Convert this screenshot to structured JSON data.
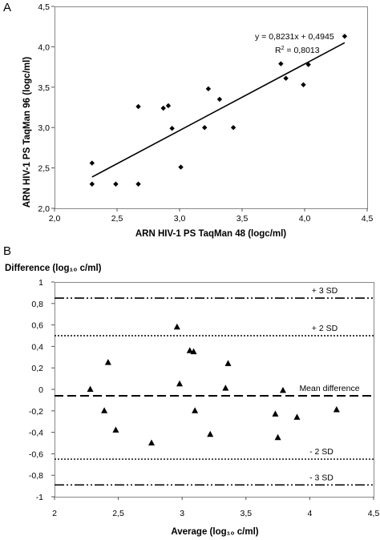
{
  "chart_data": [
    {
      "panel": "A",
      "type": "scatter",
      "xlabel": "ARN HIV-1 PS TaqMan 48 (logc/ml)",
      "ylabel": "ARN HIV-1 PS TaqMan 96 (logc/ml)",
      "xlim": [
        2.0,
        4.5
      ],
      "ylim": [
        2.0,
        4.5
      ],
      "xticks": [
        "2,0",
        "2,5",
        "3,0",
        "3,5",
        "4,0",
        "4,5"
      ],
      "yticks": [
        "2,0",
        "2,5",
        "3,0",
        "3,5",
        "4,0",
        "4,5"
      ],
      "grid": false,
      "marker": "diamond",
      "points": [
        {
          "x": 2.3,
          "y": 2.56
        },
        {
          "x": 2.3,
          "y": 2.3
        },
        {
          "x": 2.49,
          "y": 2.3
        },
        {
          "x": 2.67,
          "y": 3.26
        },
        {
          "x": 2.67,
          "y": 2.3
        },
        {
          "x": 2.87,
          "y": 3.24
        },
        {
          "x": 2.91,
          "y": 3.27
        },
        {
          "x": 2.94,
          "y": 2.99
        },
        {
          "x": 3.01,
          "y": 2.51
        },
        {
          "x": 3.2,
          "y": 3.0
        },
        {
          "x": 3.23,
          "y": 3.48
        },
        {
          "x": 3.32,
          "y": 3.35
        },
        {
          "x": 3.43,
          "y": 3.0
        },
        {
          "x": 3.81,
          "y": 3.79
        },
        {
          "x": 3.85,
          "y": 3.61
        },
        {
          "x": 3.99,
          "y": 3.53
        },
        {
          "x": 4.03,
          "y": 3.78
        },
        {
          "x": 4.32,
          "y": 4.13
        }
      ],
      "trendline": {
        "slope": 0.8231,
        "intercept": 0.4945,
        "x_range": [
          2.3,
          4.32
        ]
      },
      "annotations": {
        "equation": "y = 0,8231x + 0,4945",
        "r2_prefix": "R",
        "r2_exp": "2",
        "r2_value": " = 0,8013"
      }
    },
    {
      "panel": "B",
      "type": "scatter",
      "title": "Difference (log₁₀ c/ml)",
      "xlabel": "Average (log₁₀ c/ml)",
      "xlim": [
        2.0,
        4.5
      ],
      "ylim": [
        -1.0,
        1.0
      ],
      "xticks": [
        "2",
        "2,5",
        "3",
        "3,5",
        "4",
        "4,5"
      ],
      "yticks": [
        "1",
        "0,8",
        "0,6",
        "0,4",
        "0,2",
        "0",
        "-0,2",
        "-0,4",
        "-0,6",
        "-0,8",
        "-1"
      ],
      "grid": false,
      "marker": "triangle",
      "points": [
        {
          "x": 2.28,
          "y": 0.0
        },
        {
          "x": 2.39,
          "y": -0.2
        },
        {
          "x": 2.42,
          "y": 0.25
        },
        {
          "x": 2.48,
          "y": -0.38
        },
        {
          "x": 2.76,
          "y": -0.5
        },
        {
          "x": 2.96,
          "y": 0.58
        },
        {
          "x": 2.98,
          "y": 0.05
        },
        {
          "x": 3.06,
          "y": 0.36
        },
        {
          "x": 3.09,
          "y": 0.35
        },
        {
          "x": 3.1,
          "y": -0.2
        },
        {
          "x": 3.22,
          "y": -0.42
        },
        {
          "x": 3.34,
          "y": 0.01
        },
        {
          "x": 3.36,
          "y": 0.24
        },
        {
          "x": 3.73,
          "y": -0.23
        },
        {
          "x": 3.75,
          "y": -0.45
        },
        {
          "x": 3.79,
          "y": -0.01
        },
        {
          "x": 3.9,
          "y": -0.26
        },
        {
          "x": 4.21,
          "y": -0.19
        }
      ],
      "reference_lines": [
        {
          "label": "+ 3 SD",
          "value": 0.85,
          "style": "dash-dot-dot"
        },
        {
          "label": "+ 2 SD",
          "value": 0.5,
          "style": "dotted"
        },
        {
          "label": "Mean difference",
          "value": -0.06,
          "style": "dashed"
        },
        {
          "label": "- 2 SD",
          "value": -0.65,
          "style": "dotted"
        },
        {
          "label": "- 3 SD",
          "value": -0.89,
          "style": "dash-dot-dot"
        }
      ]
    }
  ]
}
